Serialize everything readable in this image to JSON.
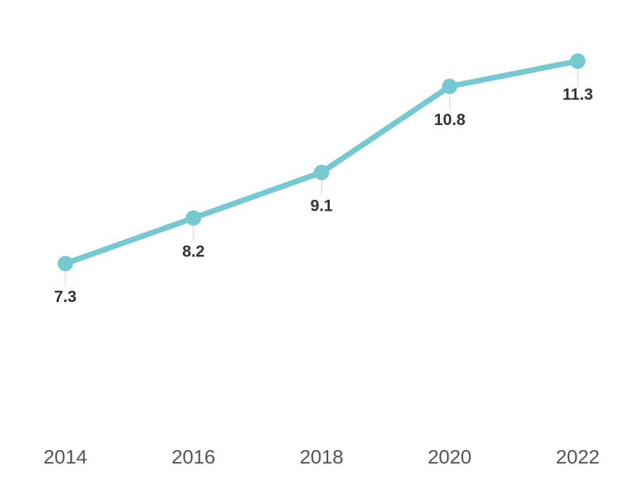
{
  "chart_data": {
    "type": "line",
    "x": [
      "2014",
      "2016",
      "2018",
      "2020",
      "2022"
    ],
    "series": [
      {
        "values": [
          7.3,
          8.2,
          9.1,
          10.8,
          11.3
        ],
        "labels": [
          "7.3",
          "8.2",
          "9.1",
          "10.8",
          "11.3"
        ]
      }
    ],
    "title": "",
    "xlabel": "",
    "ylabel": "",
    "ylim": [
      3.5,
      11.8
    ],
    "grid": false,
    "legend": "none",
    "colors": {
      "line": "#76c8d3",
      "marker": "#76c8d3",
      "data_label": "#333333",
      "tick_label": "#555555",
      "leader": "#dddddd"
    }
  }
}
